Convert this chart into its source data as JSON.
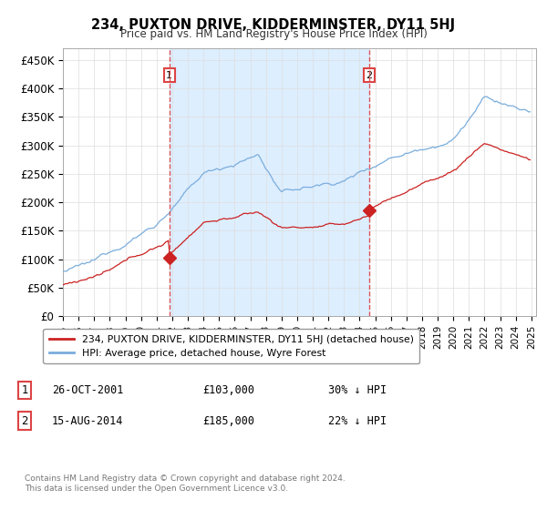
{
  "title": "234, PUXTON DRIVE, KIDDERMINSTER, DY11 5HJ",
  "subtitle": "Price paid vs. HM Land Registry's House Price Index (HPI)",
  "ylim": [
    0,
    470000
  ],
  "yticks": [
    0,
    50000,
    100000,
    150000,
    200000,
    250000,
    300000,
    350000,
    400000,
    450000
  ],
  "ytick_labels": [
    "£0",
    "£50K",
    "£100K",
    "£150K",
    "£200K",
    "£250K",
    "£300K",
    "£350K",
    "£400K",
    "£450K"
  ],
  "transaction1": {
    "date": "26-OCT-2001",
    "price": 103000,
    "pct": "30%",
    "label": "1",
    "year": 2001.82
  },
  "transaction2": {
    "date": "15-AUG-2014",
    "price": 185000,
    "pct": "22%",
    "label": "2",
    "year": 2014.62
  },
  "hpi_color": "#7aaddc",
  "price_color": "#cc2222",
  "vline_color": "#dd4444",
  "shade_color": "#ddeeff",
  "legend_label1": "234, PUXTON DRIVE, KIDDERMINSTER, DY11 5HJ (detached house)",
  "legend_label2": "HPI: Average price, detached house, Wyre Forest",
  "footer1": "Contains HM Land Registry data © Crown copyright and database right 2024.",
  "footer2": "This data is licensed under the Open Government Licence v3.0.",
  "background_color": "#ffffff",
  "grid_color": "#dddddd"
}
